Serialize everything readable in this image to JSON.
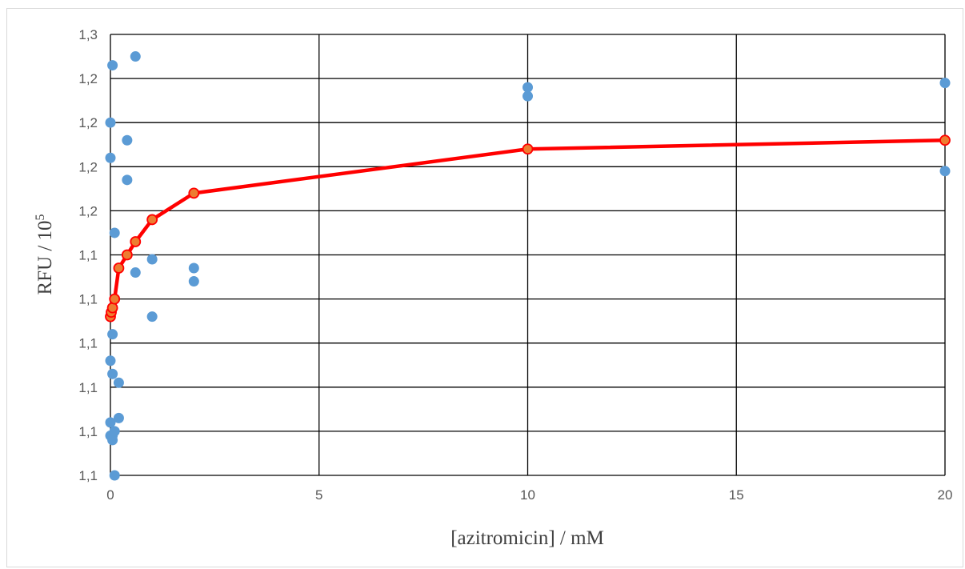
{
  "chart_data": {
    "type": "scatter",
    "xlabel": "[azitromicin] / mM",
    "ylabel": {
      "text": "RFU / 10",
      "sup": "5"
    },
    "xlim": [
      0,
      20
    ],
    "ylim": [
      0,
      10
    ],
    "xticks": [
      0,
      5,
      10,
      15,
      20
    ],
    "yticks": [
      0,
      1,
      2,
      3,
      4,
      5,
      6,
      7,
      8,
      9,
      10
    ],
    "xtick_labels": [
      "0",
      "5",
      "10",
      "15",
      "20"
    ],
    "ytick_labels": [
      "1,1",
      "1,1",
      "1,1",
      "1,1",
      "1,1",
      "1,1",
      "1,2",
      "1,2",
      "1,2",
      "1,2",
      "1,3"
    ],
    "grid": true,
    "colors": {
      "points": "#5b9bd5",
      "fit_line": "#ff0000",
      "fit_marker": "#ed7d31",
      "grid": "#000000",
      "axis_text": "#595959"
    },
    "series": [
      {
        "type": "scatter",
        "points": [
          [
            0,
            8.0
          ],
          [
            0,
            7.2
          ],
          [
            0,
            2.6
          ],
          [
            0,
            1.2
          ],
          [
            0,
            0.9
          ],
          [
            0.05,
            9.3
          ],
          [
            0.05,
            3.2
          ],
          [
            0.05,
            2.3
          ],
          [
            0.05,
            0.8
          ],
          [
            0.05,
            0.9
          ],
          [
            0.1,
            5.5
          ],
          [
            0.1,
            0.0
          ],
          [
            0.1,
            1.0
          ],
          [
            0.2,
            2.1
          ],
          [
            0.2,
            1.3
          ],
          [
            0.4,
            7.6
          ],
          [
            0.4,
            6.7
          ],
          [
            0.6,
            9.5
          ],
          [
            0.6,
            4.6
          ],
          [
            1,
            4.9
          ],
          [
            1,
            3.6
          ],
          [
            2,
            4.7
          ],
          [
            2,
            4.4
          ],
          [
            10,
            8.8
          ],
          [
            10,
            8.6
          ],
          [
            20,
            8.9
          ],
          [
            20,
            6.9
          ]
        ]
      },
      {
        "type": "line",
        "points": [
          [
            0,
            3.6
          ],
          [
            0.02,
            3.7
          ],
          [
            0.05,
            3.8
          ],
          [
            0.1,
            4.0
          ],
          [
            0.2,
            4.7
          ],
          [
            0.4,
            5.0
          ],
          [
            0.6,
            5.3
          ],
          [
            1,
            5.8
          ],
          [
            2,
            6.4
          ],
          [
            10,
            7.4
          ],
          [
            20,
            7.6
          ]
        ]
      }
    ]
  }
}
